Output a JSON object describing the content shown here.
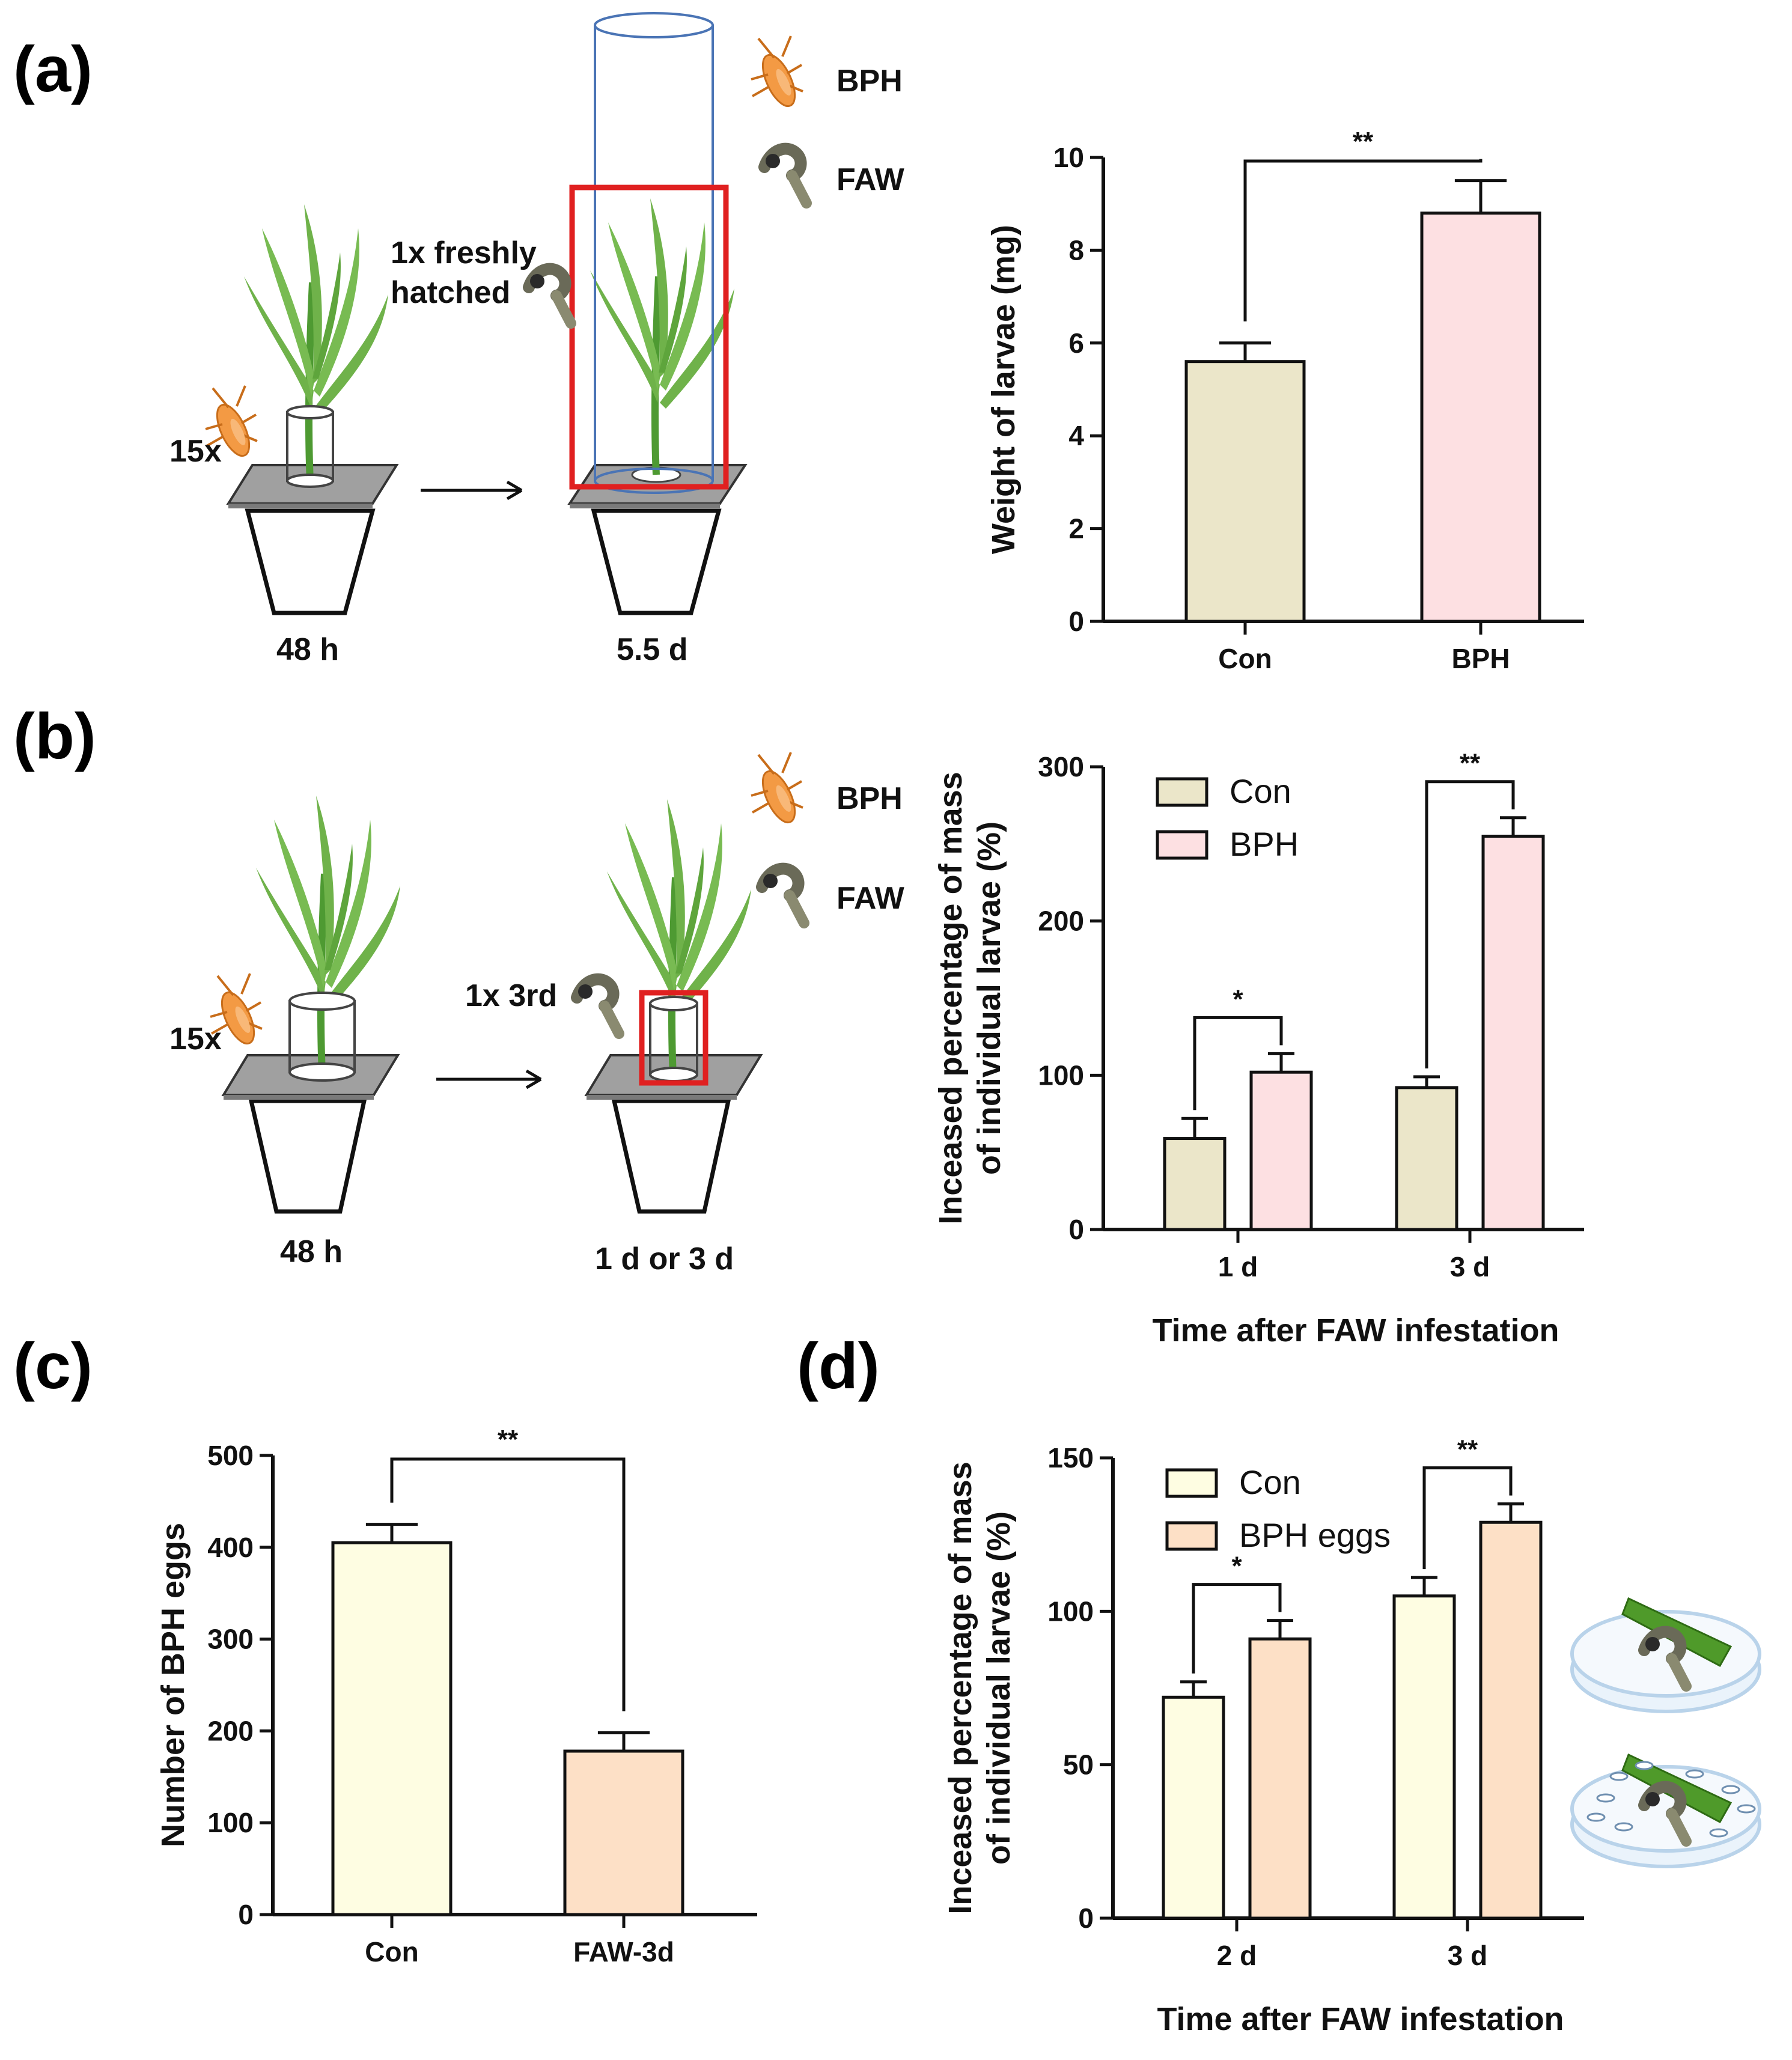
{
  "panels": {
    "a": "(a)",
    "b": "(b)",
    "c": "(c)",
    "d": "(d)"
  },
  "diagram_a": {
    "count_bph": "15x",
    "larva_line1": "1x freshly",
    "larva_line2": "hatched",
    "legend_bph": "BPH",
    "legend_faw": "FAW",
    "time_left": "48 h",
    "time_right": "5.5 d"
  },
  "diagram_b": {
    "count_bph": "15x",
    "larva_label": "1x 3rd",
    "legend_bph": "BPH",
    "legend_faw": "FAW",
    "time_left": "48 h",
    "time_right": "1 d or 3 d"
  },
  "colors": {
    "con_a": "#ebe6c9",
    "bph": "#fde0e2",
    "con_c": "#fefde2",
    "faw_eggs": "#fde0c6",
    "plant": "#6fb24a",
    "bug": "#f39a44",
    "red_box": "#e02020",
    "cylinder": "#4a74b5"
  },
  "chart_data": [
    {
      "id": "a",
      "type": "bar",
      "categories": [
        "Con",
        "BPH"
      ],
      "values": [
        5.6,
        8.8
      ],
      "errors": [
        0.4,
        0.7
      ],
      "ylabel": "Weight of larvae (mg)",
      "xlabel": "",
      "ylim": [
        0,
        10
      ],
      "yticks": [
        0,
        2,
        4,
        6,
        8,
        10
      ],
      "significance": [
        {
          "label": "**",
          "between": [
            "Con",
            "BPH"
          ]
        }
      ]
    },
    {
      "id": "b",
      "type": "bar",
      "categories": [
        "1 d",
        "3 d"
      ],
      "series": [
        {
          "name": "Con",
          "values": [
            59,
            92
          ],
          "errors": [
            13,
            7
          ]
        },
        {
          "name": "BPH",
          "values": [
            102,
            255
          ],
          "errors": [
            12,
            12
          ]
        }
      ],
      "ylabel_line1": "Inceased percentage of mass",
      "ylabel_line2": "of individual larvae (%)",
      "xlabel": "Time after FAW infestation",
      "ylim": [
        0,
        300
      ],
      "yticks": [
        0,
        100,
        200,
        300
      ],
      "legend": "top-left",
      "significance": [
        {
          "label": "*",
          "category": "1 d"
        },
        {
          "label": "**",
          "category": "3 d"
        }
      ]
    },
    {
      "id": "c",
      "type": "bar",
      "categories": [
        "Con",
        "FAW-3d"
      ],
      "values": [
        405,
        178
      ],
      "errors": [
        20,
        20
      ],
      "ylabel": "Number of BPH eggs",
      "xlabel": "",
      "ylim": [
        0,
        500
      ],
      "yticks": [
        0,
        100,
        200,
        300,
        400,
        500
      ],
      "significance": [
        {
          "label": "**",
          "between": [
            "Con",
            "FAW-3d"
          ]
        }
      ]
    },
    {
      "id": "d",
      "type": "bar",
      "categories": [
        "2 d",
        "3 d"
      ],
      "series": [
        {
          "name": "Con",
          "values": [
            72,
            105
          ],
          "errors": [
            5,
            6
          ]
        },
        {
          "name": "BPH eggs",
          "values": [
            91,
            129
          ],
          "errors": [
            6,
            6
          ]
        }
      ],
      "ylabel_line1": "Inceased percentage of mass",
      "ylabel_line2": "of individual larvae (%)",
      "xlabel": "Time after FAW infestation",
      "ylim": [
        0,
        150
      ],
      "yticks": [
        0,
        50,
        100,
        150
      ],
      "legend": "top-left",
      "significance": [
        {
          "label": "*",
          "category": "2 d"
        },
        {
          "label": "**",
          "category": "3 d"
        }
      ]
    }
  ]
}
